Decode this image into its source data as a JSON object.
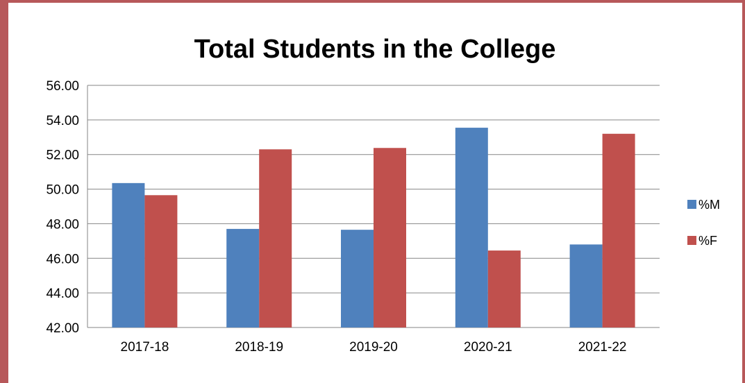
{
  "chart_data": {
    "type": "bar",
    "title": "Total Students in the College",
    "xlabel": "",
    "ylabel": "",
    "categories": [
      "2017-18",
      "2018-19",
      "2019-20",
      "2020-21",
      "2021-22"
    ],
    "series": [
      {
        "name": "%M",
        "color": "#4f81bd",
        "values": [
          50.35,
          47.7,
          47.65,
          53.55,
          46.8
        ]
      },
      {
        "name": "%F",
        "color": "#c0504d",
        "values": [
          49.65,
          52.3,
          52.38,
          46.45,
          53.2
        ]
      }
    ],
    "ylim": [
      42,
      56
    ],
    "yticks": [
      "42.00",
      "44.00",
      "46.00",
      "48.00",
      "50.00",
      "52.00",
      "54.00",
      "56.00"
    ],
    "grid": true,
    "legend": "right"
  }
}
